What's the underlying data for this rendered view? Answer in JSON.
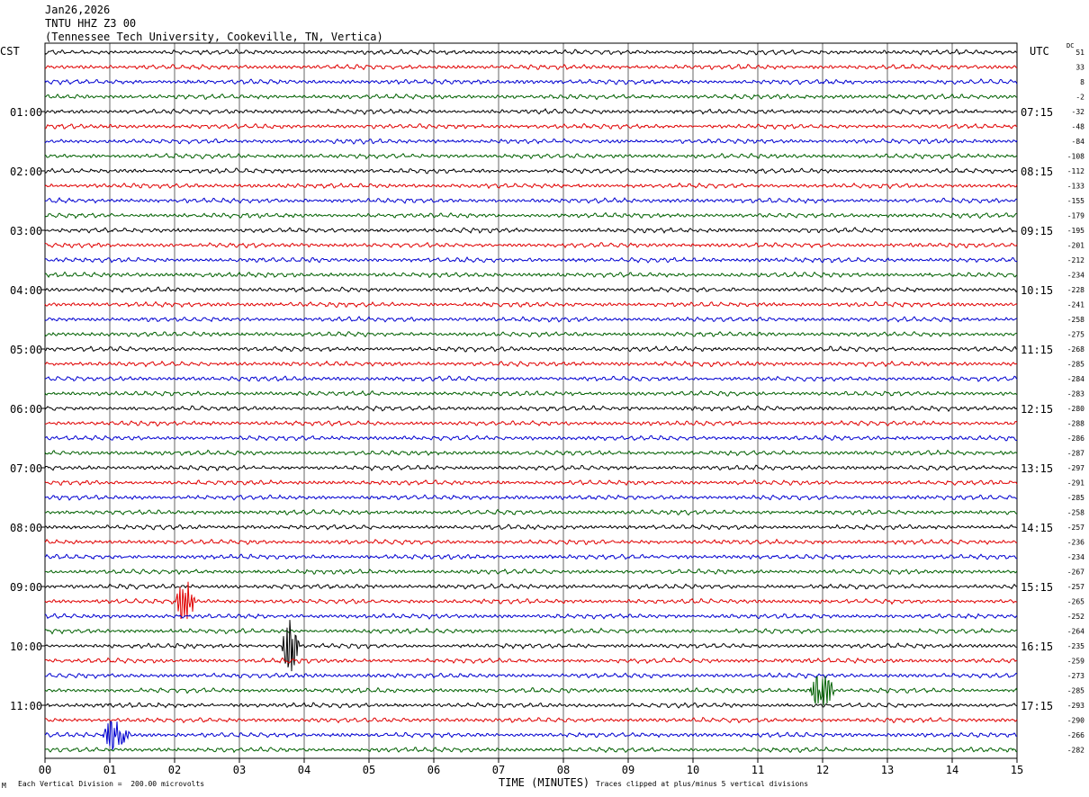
{
  "header": {
    "date": "Jan26,2026",
    "station": "TNTU HHZ Z3 00",
    "location": "(Tennessee Tech University, Cookeville, TN, Vertica)"
  },
  "axes": {
    "left_zone": "CST",
    "right_zone": "UTC",
    "dc_label": "DC",
    "xlabel": "TIME (MINUTES)",
    "x_ticks": [
      "00",
      "01",
      "02",
      "03",
      "04",
      "05",
      "06",
      "07",
      "08",
      "09",
      "10",
      "11",
      "12",
      "13",
      "14",
      "15"
    ],
    "left_hour_labels": [
      "01:00",
      "02:00",
      "03:00",
      "04:00",
      "05:00",
      "06:00",
      "07:00",
      "08:00",
      "09:00",
      "10:00",
      "11:00"
    ],
    "right_hour_labels": [
      "07:15",
      "08:15",
      "09:15",
      "10:15",
      "11:15",
      "12:15",
      "13:15",
      "14:15",
      "15:15",
      "16:15",
      "17:15"
    ]
  },
  "footer": {
    "left": "Each Vertical Division =  200.00 microvolts",
    "right": "Traces clipped at plus/minus 5 vertical divisions",
    "mark": "M"
  },
  "colors": {
    "trace_cycle": [
      "#000000",
      "#e00000",
      "#0000d0",
      "#006000"
    ],
    "grid": "#000000",
    "background": "#ffffff"
  },
  "chart_data": {
    "type": "line",
    "subtype": "helicorder",
    "minutes_per_line": 15,
    "x_range": [
      0,
      15
    ],
    "line_count": 48,
    "dc_offsets": [
      51,
      33,
      8,
      -2,
      -32,
      -48,
      -84,
      -108,
      -112,
      -133,
      -155,
      -179,
      -195,
      -201,
      -212,
      -234,
      -228,
      -241,
      -258,
      -275,
      -268,
      -285,
      -284,
      -283,
      -280,
      -288,
      -286,
      -287,
      -297,
      -291,
      -285,
      -258,
      -257,
      -236,
      -234,
      -267,
      -257,
      -265,
      -252,
      -264,
      -235,
      -259,
      -273,
      -285,
      -293,
      -290,
      -266,
      -282
    ],
    "events": [
      {
        "line": 37,
        "start_minute": 2.0,
        "end_minute": 2.55,
        "amplitude_div": 3.5
      },
      {
        "line": 40,
        "start_minute": 3.65,
        "end_minute": 4.1,
        "amplitude_div": 4.5
      },
      {
        "line": 43,
        "start_minute": 11.8,
        "end_minute": 12.45,
        "amplitude_div": 3.0
      },
      {
        "line": 46,
        "start_minute": 0.85,
        "end_minute": 1.6,
        "amplitude_div": 2.5
      }
    ]
  }
}
